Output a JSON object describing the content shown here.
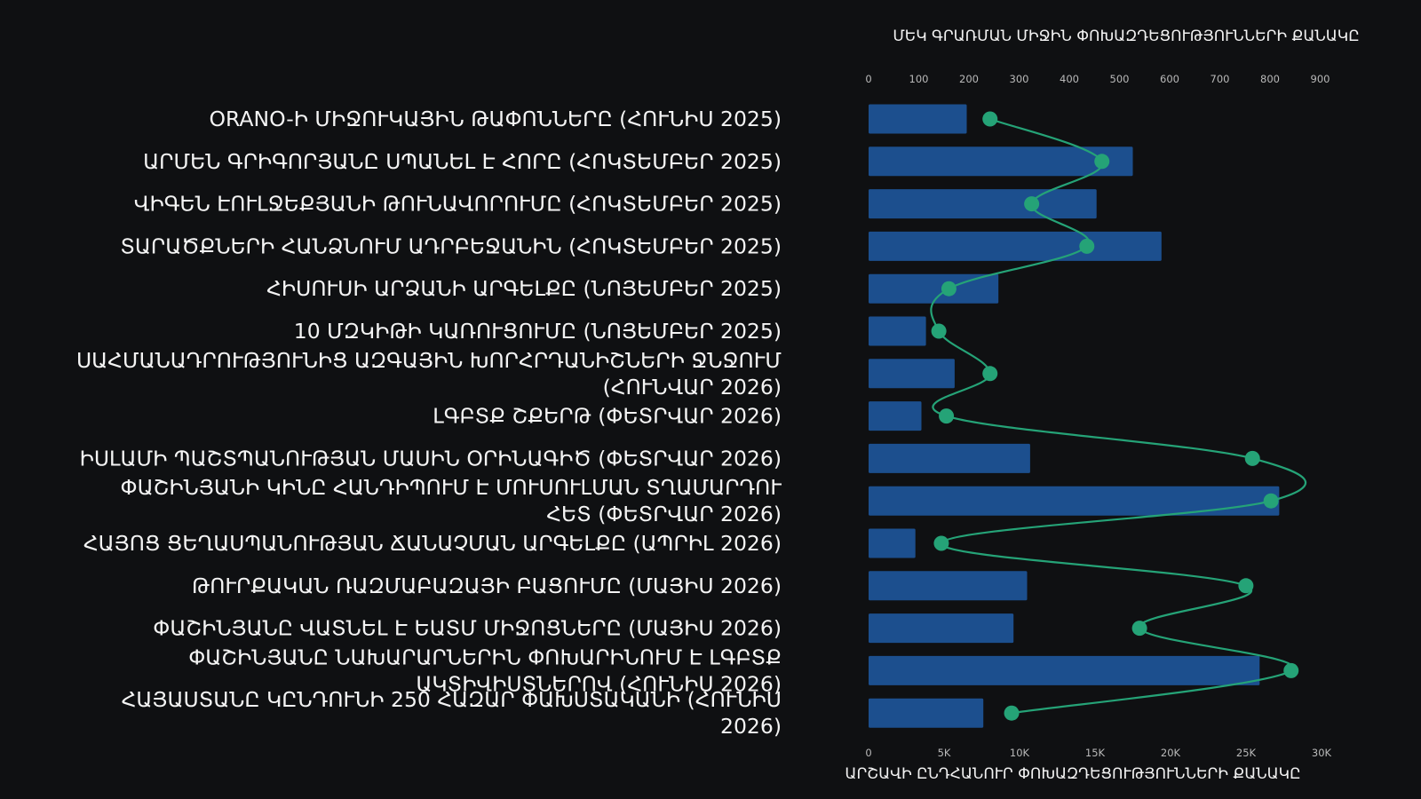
{
  "chart_data": {
    "type": "bar",
    "orientation": "horizontal",
    "title": "ՄԵԿ ԳՐԱՌՄԱՆ ՄԻՋԻՆ ՓՈԽԱԶԴԵՑՈՒԹՅՈՒՆՆԵՐԻ ՔԱՆԱԿԸ",
    "xlabel": "ԱՐՇԱՎԻ ԸՆԴՀԱՆՈՒՐ ՓՈԽԱԶԴԵՑՈՒԹՅՈՒՆՆԵՐԻ ՔԱՆԱԿԸ",
    "categories": [
      "ORANO-Ի ՄԻՋՈՒԿԱՅԻՆ ԹԱՓՈՆՆԵՐԸ (ՀՈՒՆԻՍ 2025)",
      "ԱՐՄԵՆ ԳՐԻԳՈՐՅԱՆԸ ՍՊԱՆԵԼ Է ՀՈՐԸ (ՀՈԿՏԵՄԲԵՐ 2025)",
      "ՎԻԳԵՆ ԷՈՒԼՋԵՔՅԱՆԻ ԹՈՒՆԱՎՈՐՈՒՄԸ (ՀՈԿՏԵՄԲԵՐ 2025)",
      "ՏԱՐԱԾՔՆԵՐԻ ՀԱՆՁՆՈՒՄ ԱԴՐԲԵՋԱՆԻՆ (ՀՈԿՏԵՄԲԵՐ 2025)",
      "ՀԻՍՈՒՍԻ ԱՐՁԱՆԻ ԱՐԳԵԼՔԸ (ՆՈՅԵՄԲԵՐ 2025)",
      "10 ՄԶԿԻԹԻ ԿԱՌՈՒՑՈՒՄԸ (ՆՈՅԵՄԲԵՐ 2025)",
      "ՍԱՀՄԱՆԱԴՐՈՒԹՅՈՒՆԻՑ ԱԶԳԱՅԻՆ ԽՈՐՀՐԴԱՆԻՇՆԵՐԻ ՋՆՋՈՒՄ (ՀՈՒՆՎԱՐ 2026)",
      "ԼԳԲՏՔ ՇՔԵՐԹ (ՓԵՏՐՎԱՐ 2026)",
      "ԻՍԼԱՄԻ ՊԱՇՏՊԱՆՈՒԹՅԱՆ ՄԱՍԻՆ ՕՐԻՆԱԳԻԾ (ՓԵՏՐՎԱՐ 2026)",
      "ՓԱՇԻՆՅԱՆԻ ԿԻՆԸ ՀԱՆԴԻՊՈՒՄ Է ՄՈՒՍՈՒԼՄԱՆ ՏՂԱՄԱՐԴՈՒ ՀԵՏ (ՓԵՏՐՎԱՐ 2026)",
      "ՀԱՅՈՑ ՑԵՂԱՍՊԱՆՈՒԹՅԱՆ ՃԱՆԱՉՄԱՆ ԱՐԳԵԼՔԸ (ԱՊՐԻԼ 2026)",
      "ԹՈՒՐՔԱԿԱՆ ՌԱԶՄԱԲԱԶԱՅԻ ԲԱՑՈՒՄԸ (ՄԱՅԻՍ 2026)",
      "ՓԱՇԻՆՅԱՆԸ ՎԱՏՆԵԼ Է ԵԱՏՄ ՄԻՋՈՑՆԵՐԸ (ՄԱՅԻՍ 2026)",
      "ՓԱՇԻՆՅԱՆԸ ՆԱԽԱՐԱՐՆԵՐԻՆ ՓՈԽԱՐԻՆՈՒՄ Է ԼԳԲՏՔ ԱԿՏԻՎԻՍՏՆԵՐՈՎ (ՀՈՒՆԻՍ 2026)",
      "ՀԱՅԱՍՏԱՆԸ ԿԸՆԴՈՒՆԻ 250 ՀԱԶԱՐ ՓԱԽՍՏԱԿԱՆԻ (ՀՈՒՆԻՍ 2026)"
    ],
    "series": [
      {
        "axis": "bottom",
        "values": [
          6500,
          17500,
          15100,
          19400,
          8600,
          3800,
          5700,
          3500,
          10700,
          27200,
          3100,
          10500,
          9600,
          25900,
          7600
        ]
      },
      {
        "axis": "top",
        "values": [
          242,
          465,
          325,
          435,
          160,
          140,
          242,
          155,
          765,
          802,
          145,
          752,
          540,
          842,
          285
        ]
      }
    ],
    "x_bottom": {
      "range": [
        0,
        30000
      ],
      "ticks": [
        0,
        5000,
        10000,
        15000,
        20000,
        25000,
        30000
      ],
      "tick_labels": [
        "0",
        "5K",
        "10K",
        "15K",
        "20K",
        "25K",
        "30K"
      ]
    },
    "x_top": {
      "range": [
        0,
        900
      ],
      "ticks": [
        0,
        100,
        200,
        300,
        400,
        500,
        600,
        700,
        800,
        900
      ],
      "tick_labels": [
        "0",
        "100",
        "200",
        "300",
        "400",
        "500",
        "600",
        "700",
        "800",
        "900"
      ]
    },
    "grid": false,
    "colors": {
      "bar": "#1c4f8e",
      "line": "#25a377",
      "background": "#0f1012"
    }
  }
}
